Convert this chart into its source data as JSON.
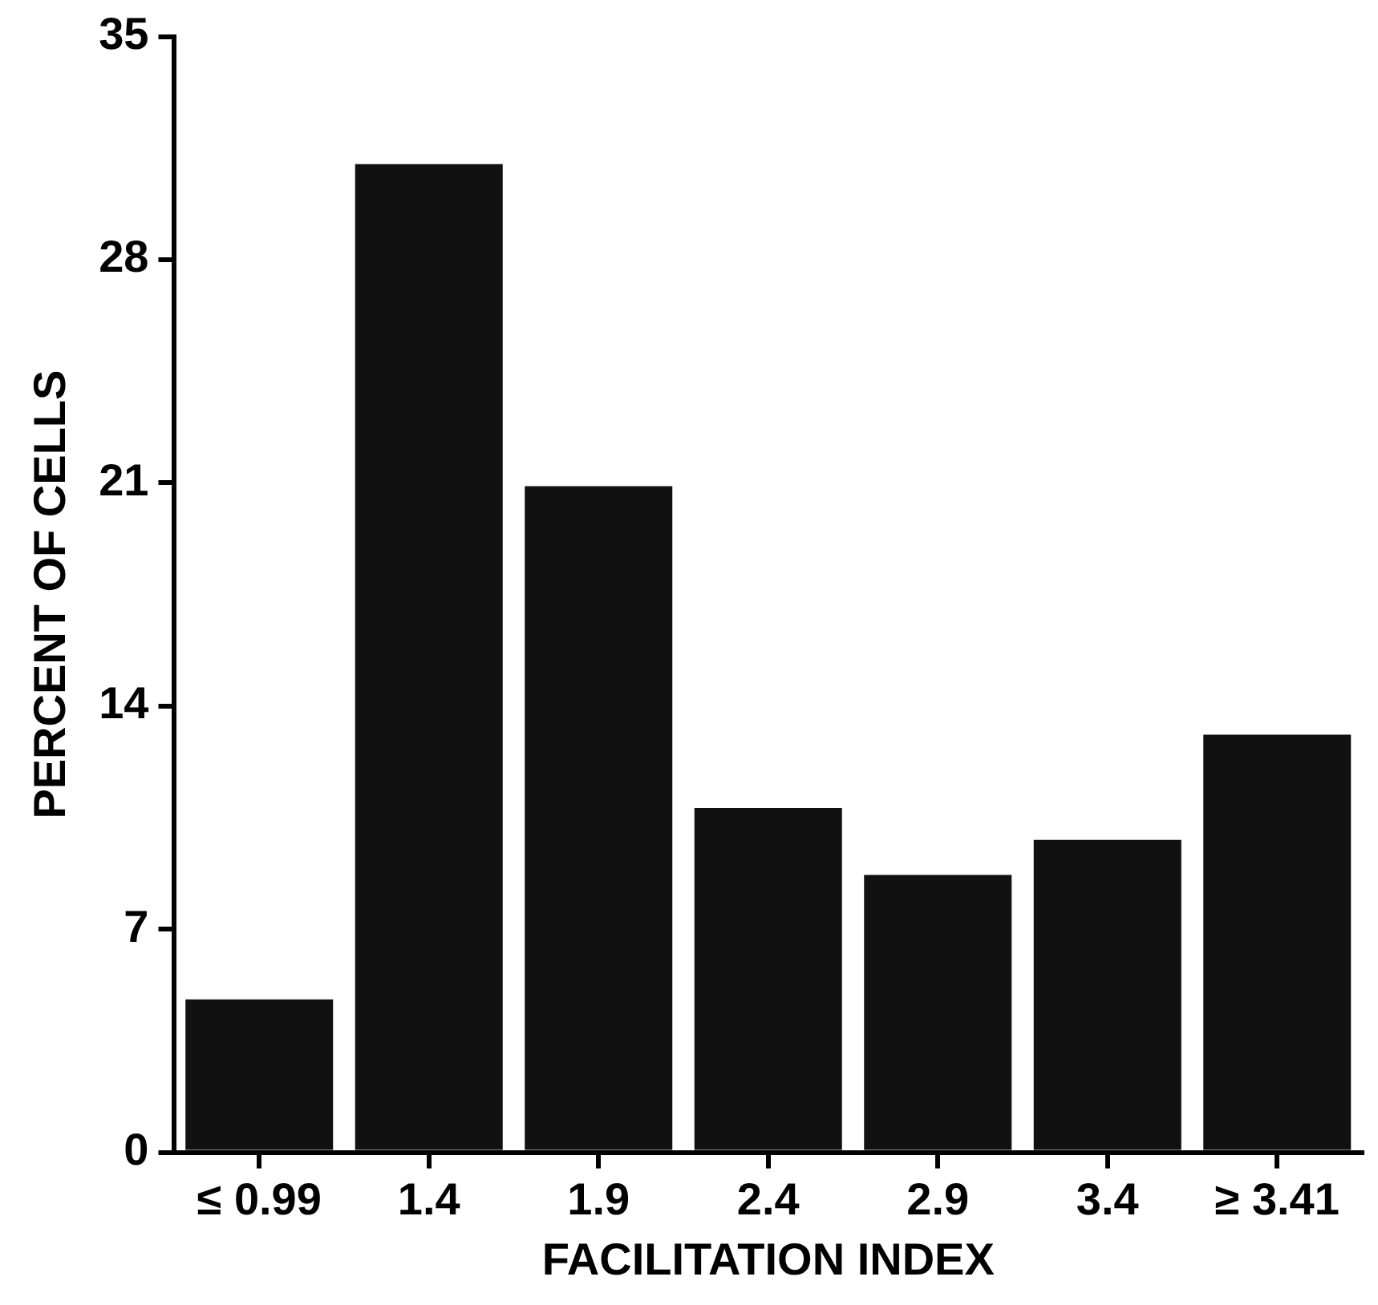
{
  "chart_data": {
    "type": "bar",
    "xlabel": "FACILITATION INDEX",
    "ylabel": "PERCENT OF CELLS",
    "categories": [
      "≤ 0.99",
      "1.4",
      "1.9",
      "2.4",
      "2.9",
      "3.4",
      "≥ 3.41"
    ],
    "values": [
      4.8,
      31,
      20.9,
      10.8,
      8.7,
      9.8,
      13.1
    ],
    "color": "#111111",
    "ylim": [
      0,
      35
    ],
    "yticks": [
      0,
      7,
      14,
      21,
      28,
      35
    ],
    "grid": false,
    "legend": false
  }
}
